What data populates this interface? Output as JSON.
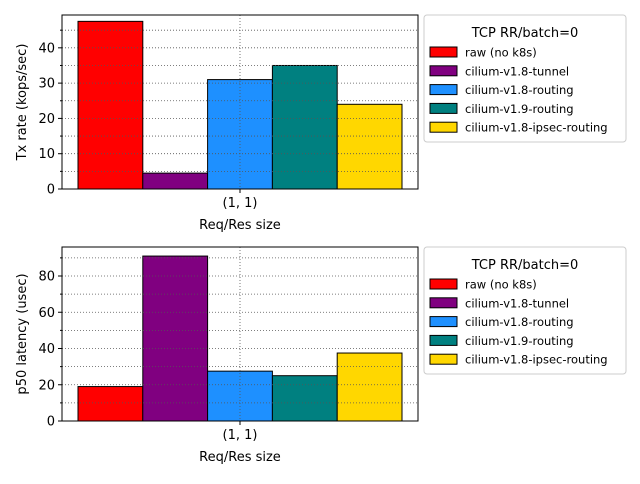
{
  "chart_data": [
    {
      "type": "bar",
      "categories": [
        "(1, 1)"
      ],
      "series": [
        {
          "name": "raw (no k8s)",
          "values": [
            47.5
          ],
          "color": "#ff0000"
        },
        {
          "name": "cilium-v1.8-tunnel",
          "values": [
            4.5
          ],
          "color": "#800080"
        },
        {
          "name": "cilium-v1.8-routing",
          "values": [
            31
          ],
          "color": "#1e90ff"
        },
        {
          "name": "cilium-v1.9-routing",
          "values": [
            35
          ],
          "color": "#008080"
        },
        {
          "name": "cilium-v1.8-ipsec-routing",
          "values": [
            24
          ],
          "color": "#ffd700"
        }
      ],
      "xlabel": "Req/Res size",
      "ylabel": "Tx rate (kops/sec)",
      "ylim": [
        0,
        49.3
      ],
      "yticks": [
        0,
        10,
        20,
        30,
        40
      ],
      "grid": true,
      "legend_title": "TCP RR/batch=0",
      "legend_position": "right"
    },
    {
      "type": "bar",
      "categories": [
        "(1, 1)"
      ],
      "series": [
        {
          "name": "raw (no k8s)",
          "values": [
            19
          ],
          "color": "#ff0000"
        },
        {
          "name": "cilium-v1.8-tunnel",
          "values": [
            91
          ],
          "color": "#800080"
        },
        {
          "name": "cilium-v1.8-routing",
          "values": [
            27.5
          ],
          "color": "#1e90ff"
        },
        {
          "name": "cilium-v1.9-routing",
          "values": [
            25
          ],
          "color": "#008080"
        },
        {
          "name": "cilium-v1.8-ipsec-routing",
          "values": [
            37.5
          ],
          "color": "#ffd700"
        }
      ],
      "xlabel": "Req/Res size",
      "ylabel": "p50 latency (usec)",
      "ylim": [
        0,
        96
      ],
      "yticks": [
        0,
        20,
        40,
        60,
        80
      ],
      "grid": true,
      "legend_title": "TCP RR/batch=0",
      "legend_position": "right"
    }
  ]
}
